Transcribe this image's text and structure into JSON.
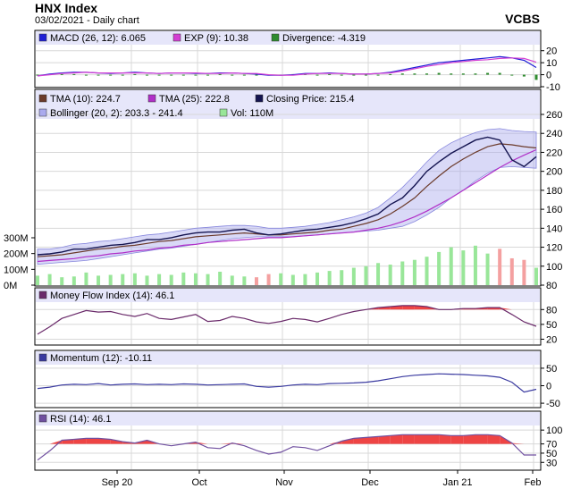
{
  "header": {
    "title": "HNX Index",
    "subtitle": "03/02/2021 - Daily chart",
    "brand": "VCBS"
  },
  "colors": {
    "plot_bg": "#ffffff",
    "legend_bg": "#e6e6fa",
    "grid": "#d8d8d8",
    "frame": "#000000",
    "macd": "#1f1fd6",
    "exp": "#d33fd3",
    "divergence": "#2e8b2e",
    "tma10": "#6b3a2a",
    "tma25": "#b02fc8",
    "close": "#141450",
    "bollinger": "#aaaaee",
    "vol_up": "#99e699",
    "vol_down": "#f4a0a0",
    "mfi": "#6a2a6a",
    "momentum": "#3a3aa0",
    "rsi": "#7050a0",
    "fill_red": "#ee4444"
  },
  "x_axis": {
    "labels": [
      "Sep 20",
      "Oct",
      "Nov",
      "Dec",
      "Jan 21",
      "Feb"
    ]
  },
  "chart_data": [
    {
      "type": "line",
      "panel": "macd",
      "legend": [
        "MACD (26, 12): 6.065",
        "EXP (9): 10.38",
        "Divergence: -4.319"
      ],
      "y_ticks": [
        "20",
        "10",
        "0",
        "-10"
      ],
      "ylim": [
        -10,
        25
      ],
      "x": [
        0,
        4,
        8,
        12,
        16,
        20,
        24,
        28,
        32,
        36,
        40,
        44,
        48,
        52,
        56,
        60,
        64,
        68,
        72,
        76,
        80,
        84,
        88,
        92,
        96,
        100,
        104,
        108,
        112,
        116,
        120,
        124,
        128,
        132,
        136,
        140,
        144,
        148,
        152,
        156,
        160,
        164
      ],
      "series": [
        {
          "name": "MACD (26, 12): 6.065",
          "values": [
            -1,
            0.5,
            1.5,
            2,
            2,
            1.5,
            1,
            1.5,
            2,
            1.5,
            1,
            1.5,
            1.5,
            1,
            1,
            1.5,
            1.5,
            1,
            0.5,
            -0.5,
            -0.5,
            0,
            1,
            1,
            1.5,
            1,
            0.5,
            0.5,
            1,
            2,
            4,
            6,
            8,
            10,
            11,
            12,
            13,
            14,
            15,
            14,
            12,
            6
          ]
        },
        {
          "name": "EXP (9): 10.38",
          "values": [
            -1,
            0,
            1,
            1.5,
            2,
            1.5,
            1.5,
            1.5,
            1.5,
            1.5,
            1,
            1.5,
            1.5,
            1.5,
            1,
            1,
            1.5,
            1,
            1,
            0,
            -0.5,
            -0.5,
            0.5,
            1,
            1,
            1,
            0.5,
            0.5,
            1,
            1.5,
            3,
            5,
            7,
            8.5,
            10,
            11,
            12,
            12.5,
            13.5,
            14,
            13.5,
            10.4
          ]
        }
      ],
      "divergence": [
        0,
        0.5,
        0.5,
        0.5,
        0,
        0,
        -0.5,
        0,
        0.5,
        0,
        0,
        0,
        0,
        -0.5,
        0,
        0.5,
        0,
        0,
        -0.5,
        -0.5,
        0,
        0.5,
        0.5,
        0,
        0.5,
        0,
        0,
        0,
        0,
        0.5,
        1,
        1,
        1,
        1.5,
        1,
        1,
        1,
        1.5,
        1.5,
        0,
        -1.5,
        -4.3
      ]
    },
    {
      "type": "line",
      "panel": "price",
      "legend": [
        "TMA (10): 224.7",
        "TMA (25): 222.8",
        "Closing Price: 215.4",
        "Bollinger (20, 2): 203.3 - 241.4",
        "Vol: 110M"
      ],
      "y_ticks": [
        "260",
        "240",
        "220",
        "200",
        "180",
        "160",
        "140",
        "120",
        "100",
        "80"
      ],
      "ylim": [
        80,
        260
      ],
      "vol_ticks": [
        "300M",
        "200M",
        "100M",
        "0M"
      ],
      "vol_ylim": [
        0,
        300
      ],
      "x": [
        0,
        4,
        8,
        12,
        16,
        20,
        24,
        28,
        32,
        36,
        40,
        44,
        48,
        52,
        56,
        60,
        64,
        68,
        72,
        76,
        80,
        84,
        88,
        92,
        96,
        100,
        104,
        108,
        112,
        116,
        120,
        124,
        128,
        132,
        136,
        140,
        144,
        148,
        152,
        156,
        160,
        164
      ],
      "series": [
        {
          "name": "Closing Price: 215.4",
          "values": [
            112,
            113,
            115,
            118,
            118,
            120,
            122,
            123,
            125,
            128,
            128,
            130,
            133,
            135,
            136,
            136,
            138,
            139,
            135,
            133,
            134,
            136,
            138,
            139,
            141,
            143,
            146,
            150,
            155,
            165,
            172,
            185,
            200,
            210,
            219,
            226,
            233,
            236,
            233,
            212,
            205,
            215.4
          ]
        },
        {
          "name": "TMA (10): 224.7",
          "values": [
            110,
            111,
            112,
            114,
            116,
            118,
            119,
            121,
            122,
            124,
            126,
            127,
            129,
            131,
            132,
            133,
            134,
            135,
            134,
            133,
            133,
            134,
            135,
            136,
            138,
            139,
            142,
            145,
            149,
            155,
            163,
            172,
            184,
            195,
            205,
            213,
            220,
            226,
            229,
            228,
            226,
            224.7
          ]
        },
        {
          "name": "TMA (25): 222.8",
          "values": [
            105,
            106,
            107,
            108,
            110,
            111,
            113,
            114,
            116,
            117,
            119,
            120,
            122,
            123,
            125,
            126,
            127,
            128,
            129,
            130,
            130,
            131,
            132,
            133,
            134,
            135,
            136,
            138,
            140,
            143,
            147,
            152,
            158,
            165,
            172,
            180,
            188,
            196,
            204,
            211,
            217,
            222.8
          ]
        },
        {
          "name": "Bollinger upper",
          "values": [
            118,
            118,
            120,
            123,
            124,
            126,
            127,
            129,
            131,
            133,
            134,
            136,
            138,
            140,
            141,
            142,
            143,
            143,
            142,
            140,
            140,
            141,
            142,
            144,
            146,
            149,
            152,
            156,
            162,
            172,
            183,
            196,
            210,
            222,
            230,
            236,
            241,
            244,
            245,
            243,
            242,
            241.4
          ]
        },
        {
          "name": "Bollinger lower",
          "values": [
            102,
            103,
            104,
            105,
            106,
            108,
            110,
            112,
            114,
            116,
            118,
            119,
            121,
            123,
            125,
            127,
            129,
            130,
            131,
            131,
            131,
            131,
            132,
            133,
            134,
            135,
            136,
            137,
            138,
            140,
            142,
            147,
            154,
            162,
            172,
            180,
            190,
            198,
            204,
            205,
            204,
            203.3
          ]
        }
      ],
      "volume": [
        60,
        70,
        50,
        55,
        80,
        60,
        65,
        70,
        75,
        60,
        70,
        65,
        80,
        75,
        70,
        85,
        60,
        55,
        50,
        70,
        75,
        65,
        70,
        80,
        90,
        95,
        110,
        120,
        140,
        130,
        150,
        160,
        180,
        210,
        240,
        220,
        250,
        200,
        230,
        170,
        160,
        110
      ]
    },
    {
      "type": "line",
      "panel": "mfi",
      "legend": [
        "Money Flow Index (14): 46.1"
      ],
      "y_ticks": [
        "80",
        "50",
        "20"
      ],
      "ylim": [
        10,
        95
      ],
      "x": [
        0,
        4,
        8,
        12,
        16,
        20,
        24,
        28,
        32,
        36,
        40,
        44,
        48,
        52,
        56,
        60,
        64,
        68,
        72,
        76,
        80,
        84,
        88,
        92,
        96,
        100,
        104,
        108,
        112,
        116,
        120,
        124,
        128,
        132,
        136,
        140,
        144,
        148,
        152,
        156,
        160,
        164
      ],
      "values": [
        30,
        45,
        62,
        70,
        78,
        75,
        76,
        70,
        66,
        72,
        62,
        60,
        65,
        70,
        56,
        58,
        66,
        62,
        55,
        52,
        56,
        62,
        60,
        55,
        62,
        70,
        76,
        80,
        84,
        86,
        88,
        88,
        86,
        80,
        80,
        82,
        82,
        84,
        84,
        70,
        55,
        46.1
      ]
    },
    {
      "type": "line",
      "panel": "momentum",
      "legend": [
        "Momentum (12): -10.11"
      ],
      "y_ticks": [
        "50",
        "0",
        "-50"
      ],
      "ylim": [
        -60,
        60
      ],
      "x": [
        0,
        4,
        8,
        12,
        16,
        20,
        24,
        28,
        32,
        36,
        40,
        44,
        48,
        52,
        56,
        60,
        64,
        68,
        72,
        76,
        80,
        84,
        88,
        92,
        96,
        100,
        104,
        108,
        112,
        116,
        120,
        124,
        128,
        132,
        136,
        140,
        144,
        148,
        152,
        156,
        160,
        164
      ],
      "values": [
        -8,
        -4,
        2,
        4,
        3,
        6,
        2,
        4,
        5,
        3,
        4,
        3,
        5,
        4,
        2,
        3,
        4,
        5,
        -2,
        -4,
        -2,
        2,
        4,
        3,
        6,
        7,
        8,
        10,
        14,
        20,
        26,
        30,
        32,
        34,
        33,
        32,
        30,
        28,
        24,
        10,
        -18,
        -10.11
      ]
    },
    {
      "type": "line",
      "panel": "rsi",
      "legend": [
        "RSI (14): 46.1"
      ],
      "y_ticks": [
        "100",
        "70",
        "50",
        "30"
      ],
      "ylim": [
        15,
        110
      ],
      "x": [
        0,
        4,
        8,
        12,
        16,
        20,
        24,
        28,
        32,
        36,
        40,
        44,
        48,
        52,
        56,
        60,
        64,
        68,
        72,
        76,
        80,
        84,
        88,
        92,
        96,
        100,
        104,
        108,
        112,
        116,
        120,
        124,
        128,
        132,
        136,
        140,
        144,
        148,
        152,
        156,
        160,
        164
      ],
      "values": [
        35,
        55,
        78,
        80,
        82,
        82,
        80,
        75,
        72,
        78,
        70,
        66,
        70,
        74,
        62,
        60,
        72,
        66,
        56,
        48,
        52,
        64,
        62,
        56,
        66,
        76,
        82,
        84,
        86,
        88,
        90,
        90,
        90,
        90,
        88,
        88,
        90,
        90,
        88,
        72,
        46,
        46.1
      ]
    }
  ]
}
